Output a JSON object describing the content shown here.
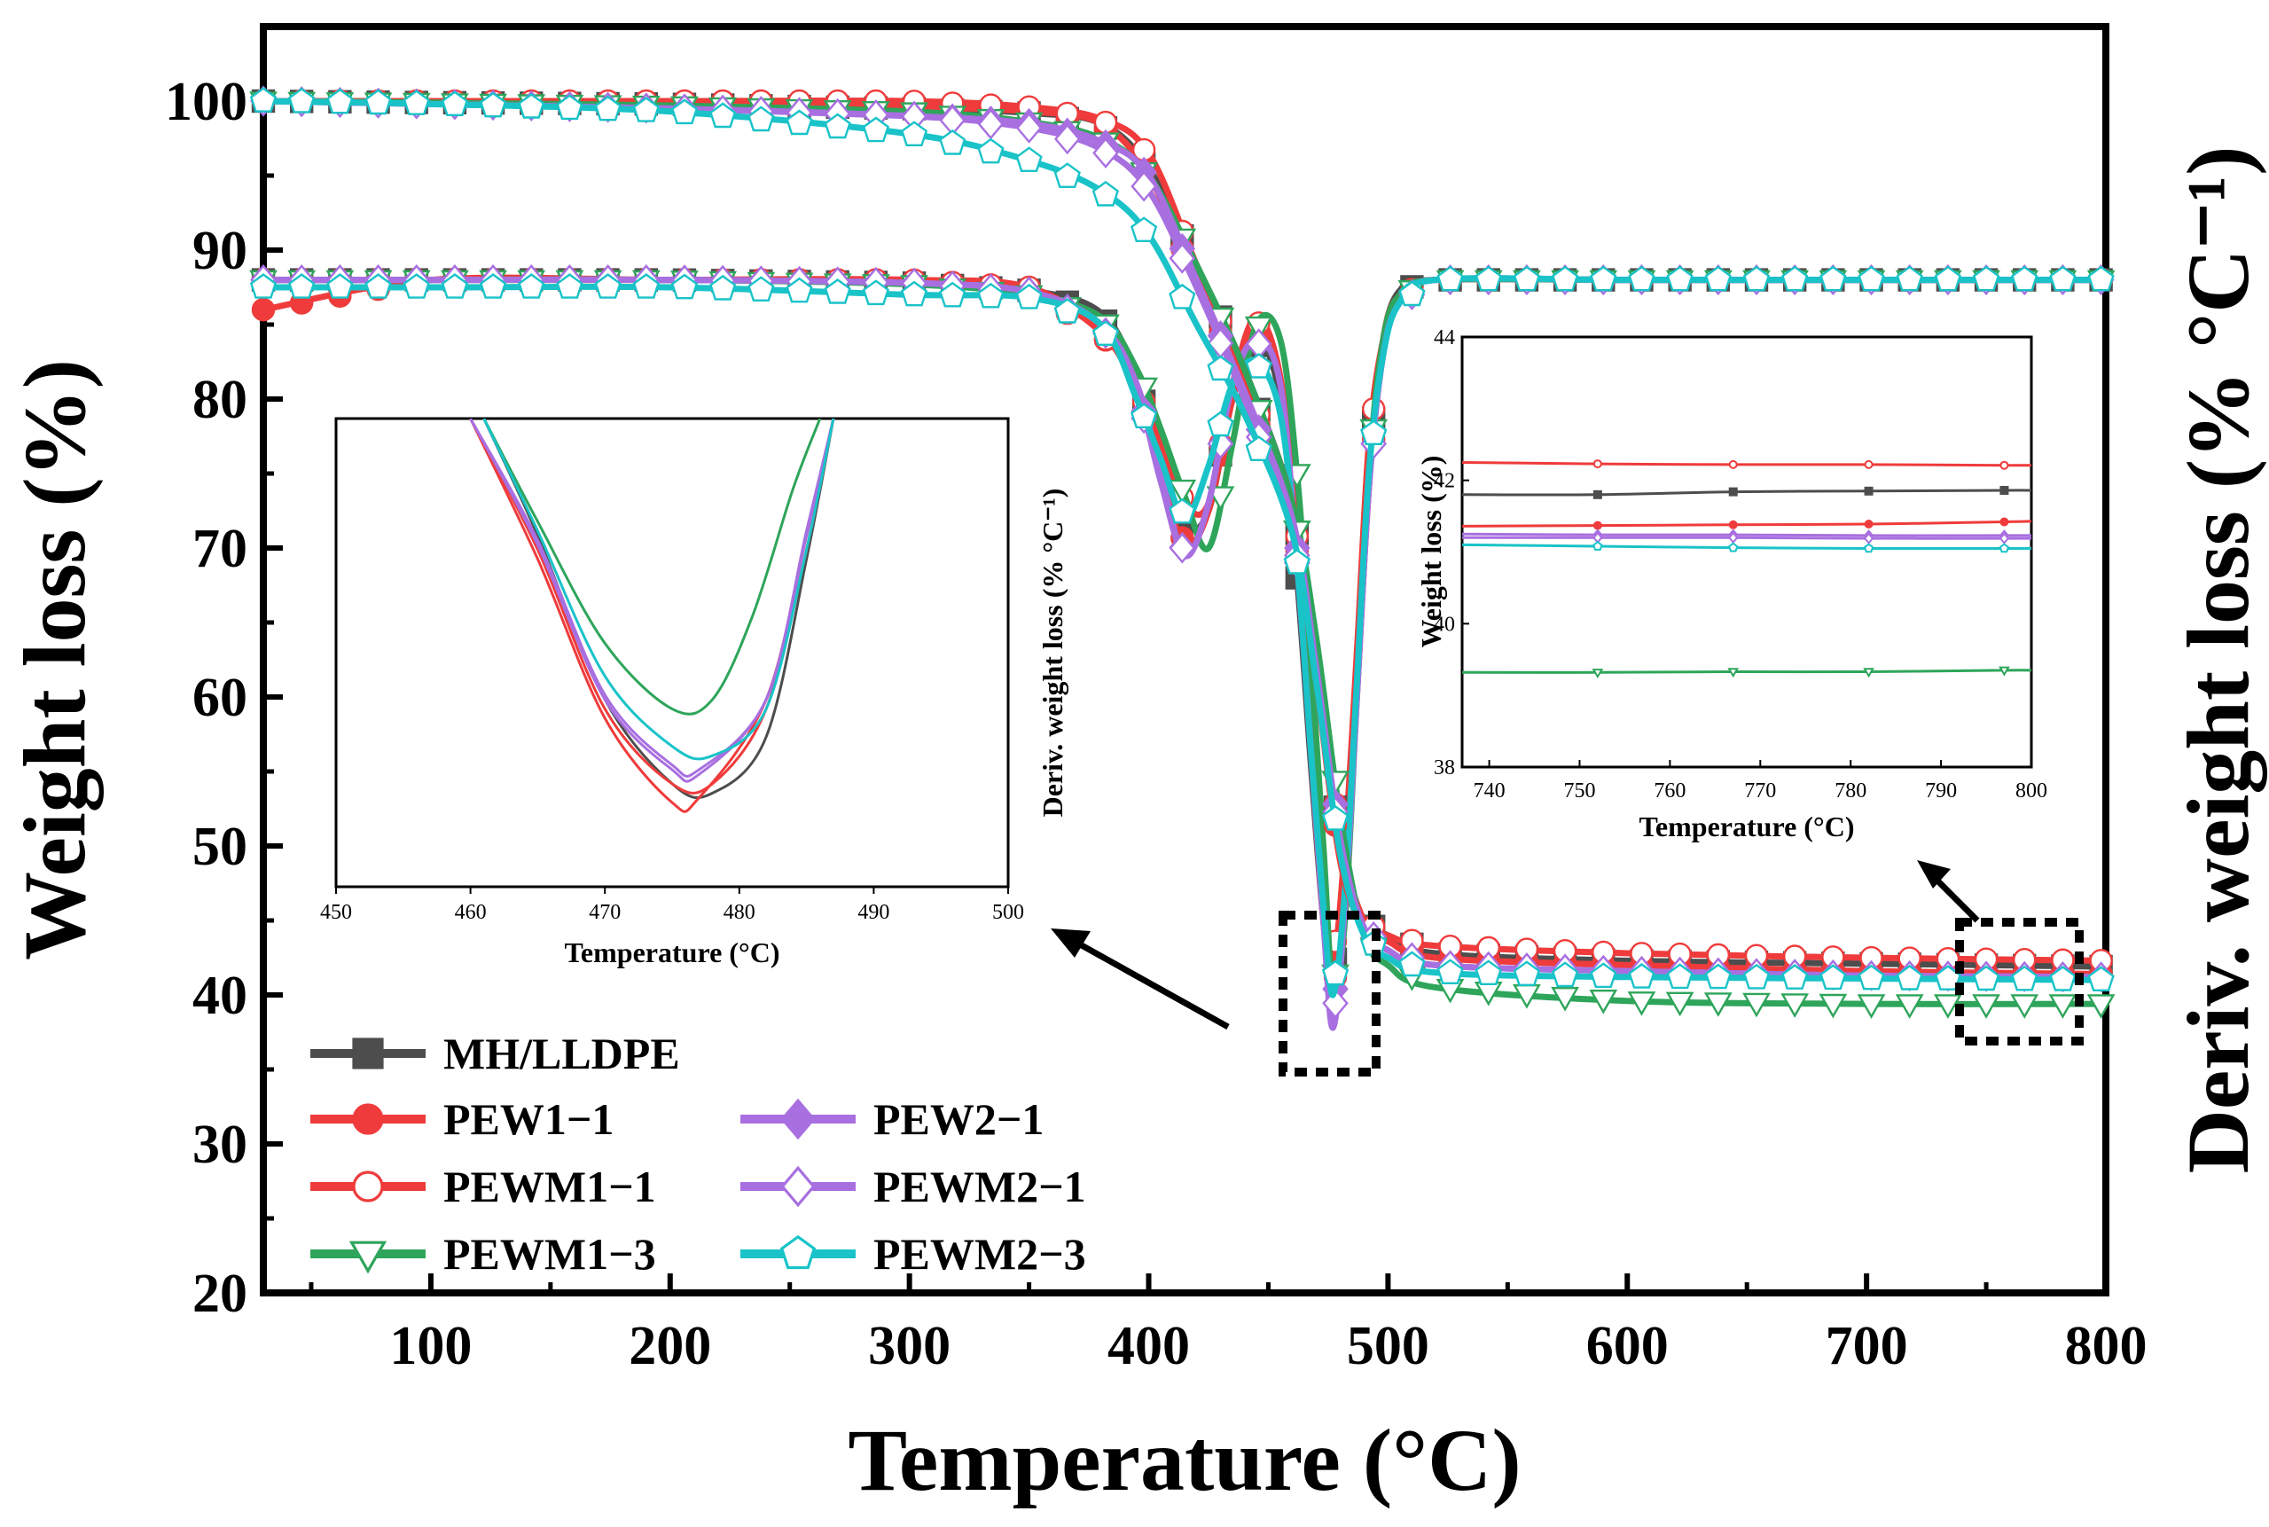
{
  "chart_data": [
    {
      "type": "line",
      "xlabel": "Temperature (°C)",
      "ylabel": "Weight loss (%)",
      "y2label": "Deriv. weight loss (% °C⁻¹)",
      "xlim": [
        30,
        800
      ],
      "ylim": [
        20,
        105
      ],
      "xticks": [
        "100",
        "200",
        "300",
        "400",
        "500",
        "600",
        "700",
        "800"
      ],
      "yticks": [
        "20",
        "30",
        "40",
        "50",
        "60",
        "70",
        "80",
        "90",
        "100"
      ],
      "grid": false,
      "legend_position": "bottom-left",
      "legend": [
        "MH/LLDPE",
        "PEW1−1",
        "PEWM1−1",
        "PEWM1−3",
        "PEW2−1",
        "PEWM2−1",
        "PEWM2−3"
      ],
      "x": [
        30,
        100,
        200,
        300,
        350,
        380,
        400,
        420,
        440,
        460,
        470,
        480,
        490,
        500,
        520,
        600,
        700,
        800
      ],
      "tga_series": [
        {
          "name": "MH/LLDPE",
          "color": "#4d4d4d",
          "marker": "square-filled",
          "values": [
            100,
            99.9,
            99.8,
            99.5,
            99.2,
            98.5,
            95.5,
            89,
            82,
            73,
            63,
            50,
            45,
            44,
            42.8,
            42.3,
            42.1,
            41.9
          ]
        },
        {
          "name": "PEW1−1",
          "color": "#ef3b3b",
          "marker": "circle-filled",
          "values": [
            100,
            100,
            99.9,
            99.6,
            99.3,
            98.5,
            95,
            88,
            81,
            72,
            61,
            49,
            44.5,
            43.6,
            42.5,
            42,
            41.6,
            41.4
          ]
        },
        {
          "name": "PEWM1−1",
          "color": "#ef3b3b",
          "marker": "circle-open",
          "values": [
            100,
            100,
            100,
            100,
            99.6,
            98.8,
            96.5,
            89,
            81.5,
            73,
            62,
            50.5,
            45,
            44,
            43.3,
            42.8,
            42.5,
            42.3
          ]
        },
        {
          "name": "PEWM1−3",
          "color": "#2ea55a",
          "marker": "triangle-down-open",
          "values": [
            100,
            99.9,
            99.7,
            99.3,
            98.6,
            97.5,
            95,
            89,
            82,
            73,
            64,
            52,
            44,
            42,
            40.5,
            39.6,
            39.4,
            39.4
          ]
        },
        {
          "name": "PEW2−1",
          "color": "#a86fe0",
          "marker": "diamond-filled",
          "values": [
            100,
            99.8,
            99.5,
            99,
            98.5,
            97.3,
            95,
            88,
            80.5,
            72,
            62,
            50.5,
            44.5,
            43,
            42,
            41.6,
            41.3,
            41.2
          ]
        },
        {
          "name": "PEWM2−1",
          "color": "#a86fe0",
          "marker": "diamond-open",
          "values": [
            100,
            99.8,
            99.5,
            99,
            98.2,
            96.8,
            94,
            87.5,
            80,
            71.5,
            61.5,
            50,
            44.5,
            43,
            42,
            41.6,
            41.3,
            41.2
          ]
        },
        {
          "name": "PEWM2−3",
          "color": "#19c3c8",
          "marker": "pentagon-open",
          "values": [
            100,
            99.8,
            99.3,
            97.8,
            96,
            94,
            91,
            85,
            79,
            71,
            61,
            49.5,
            44,
            42.5,
            41.5,
            41.2,
            41.1,
            41.0
          ]
        }
      ],
      "dtg_x": [
        30,
        100,
        200,
        300,
        350,
        380,
        395,
        405,
        415,
        425,
        435,
        445,
        455,
        462,
        468,
        473,
        477,
        482,
        487,
        492,
        498,
        505,
        520,
        600,
        700,
        800
      ],
      "dtg_series": [
        {
          "name": "MH/LLDPE",
          "values": [
            88,
            88,
            88,
            87.8,
            87.3,
            85.8,
            81.5,
            76,
            71.5,
            72.5,
            80,
            84,
            80,
            68,
            55,
            45,
            41,
            48,
            62,
            76,
            84,
            87.3,
            88,
            88,
            88,
            88
          ]
        },
        {
          "name": "PEW1−1",
          "values": [
            86,
            88,
            88,
            88,
            87.2,
            84.5,
            80.5,
            75,
            70.2,
            72.5,
            80,
            84.5,
            81,
            70,
            56,
            45,
            40,
            46,
            60,
            74,
            84,
            87,
            88,
            88,
            88,
            88
          ]
        },
        {
          "name": "PEWM1−1",
          "values": [
            88,
            88,
            88,
            88,
            87.5,
            84.5,
            81,
            77,
            73,
            73,
            81,
            85.5,
            81.5,
            71,
            57,
            46,
            42,
            50,
            63,
            77,
            84,
            87,
            88,
            88,
            88,
            88
          ]
        },
        {
          "name": "PEWM1−3",
          "values": [
            88,
            88,
            88,
            87.7,
            87,
            85.5,
            82,
            78,
            73.5,
            70,
            77,
            85,
            84,
            75,
            62,
            50,
            40.5,
            45,
            60,
            75,
            84,
            87,
            88,
            88,
            88,
            88
          ]
        },
        {
          "name": "PEW2−1",
          "values": [
            88,
            88,
            88,
            87.8,
            87.2,
            85,
            81,
            75,
            69.5,
            73,
            81,
            84,
            81,
            69,
            56,
            45,
            39,
            46,
            60,
            74,
            83,
            86.5,
            88,
            88,
            88,
            88
          ]
        },
        {
          "name": "PEWM2−1",
          "values": [
            88,
            88,
            88,
            87.8,
            87.2,
            85,
            80.5,
            74.5,
            69.5,
            73,
            81,
            84,
            81,
            69,
            56,
            45,
            37.8,
            46,
            60,
            74,
            83,
            86.5,
            88,
            88,
            88,
            88
          ]
        },
        {
          "name": "PEWM2−3",
          "values": [
            87.5,
            87.5,
            87.5,
            87,
            86.8,
            85,
            80,
            76,
            72,
            75.5,
            81,
            82.5,
            79,
            69,
            56,
            46,
            40,
            47,
            61,
            75,
            83,
            86.5,
            88,
            88,
            88,
            88
          ]
        }
      ]
    },
    {
      "type": "line",
      "xlabel": "Temperature (°C)",
      "ylabel": "Deriv. weight loss (% °C⁻¹)",
      "xlim": [
        450,
        500
      ],
      "xticks": [
        "450",
        "460",
        "470",
        "480",
        "490",
        "500"
      ],
      "yticks": [],
      "inset_of": "main",
      "ylim": [
        0,
        100
      ],
      "series": [
        {
          "name": "MH/LLDPE",
          "color": "#4d4d4d",
          "x": [
            461,
            465,
            470,
            475,
            478,
            482,
            485,
            487
          ],
          "values": [
            100,
            75,
            40,
            22,
            20,
            32,
            70,
            100
          ]
        },
        {
          "name": "PEW1−1",
          "color": "#ef3b3b",
          "x": [
            460,
            465,
            470,
            475,
            477,
            482,
            485,
            487
          ],
          "values": [
            100,
            70,
            36,
            18,
            19,
            40,
            75,
            100
          ]
        },
        {
          "name": "PEWM1−1",
          "color": "#ef3b3b",
          "x": [
            460,
            465,
            470,
            475,
            478,
            482,
            485,
            487
          ],
          "values": [
            100,
            72,
            38,
            22,
            22,
            38,
            72,
            100
          ]
        },
        {
          "name": "PEWM1−3",
          "color": "#2ea55a",
          "x": [
            461,
            465,
            470,
            475,
            478,
            481,
            484,
            486
          ],
          "values": [
            100,
            78,
            52,
            38,
            40,
            58,
            85,
            100
          ]
        },
        {
          "name": "PEW2−1",
          "color": "#a86fe0",
          "x": [
            460,
            465,
            470,
            475,
            477,
            482,
            485,
            487
          ],
          "values": [
            100,
            73,
            40,
            25,
            24,
            40,
            75,
            100
          ]
        },
        {
          "name": "PEWM2−1",
          "color": "#a86fe0",
          "x": [
            460,
            465,
            470,
            475,
            477,
            482,
            485,
            487
          ],
          "values": [
            100,
            74,
            41,
            26,
            25,
            40,
            76,
            100
          ]
        },
        {
          "name": "PEWM2−3",
          "color": "#19c3c8",
          "x": [
            461,
            465,
            470,
            475,
            478,
            482,
            485,
            487
          ],
          "values": [
            100,
            76,
            45,
            30,
            28,
            38,
            72,
            100
          ]
        }
      ]
    },
    {
      "type": "line",
      "xlabel": "Temperature (°C)",
      "ylabel": "Weight loss (%)",
      "xlim": [
        737,
        800
      ],
      "ylim": [
        38,
        44
      ],
      "xticks": [
        "740",
        "750",
        "760",
        "770",
        "780",
        "790",
        "800"
      ],
      "yticks": [
        "38",
        "40",
        "42",
        "44"
      ],
      "inset_of": "main",
      "x": [
        737,
        752,
        767,
        782,
        797,
        800
      ],
      "series": [
        {
          "name": "PEWM1−1",
          "color": "#ef3b3b",
          "values": [
            42.25,
            42.23,
            42.22,
            42.22,
            42.21,
            42.21
          ]
        },
        {
          "name": "MH/LLDPE",
          "color": "#4d4d4d",
          "values": [
            41.8,
            41.8,
            41.84,
            41.85,
            41.86,
            41.86
          ]
        },
        {
          "name": "PEW1−1",
          "color": "#ef3b3b",
          "values": [
            41.36,
            41.37,
            41.38,
            41.39,
            41.42,
            41.43
          ]
        },
        {
          "name": "PEW2−1",
          "color": "#a86fe0",
          "values": [
            41.25,
            41.24,
            41.24,
            41.23,
            41.23,
            41.23
          ]
        },
        {
          "name": "PEWM2−1",
          "color": "#a86fe0",
          "values": [
            41.2,
            41.2,
            41.2,
            41.19,
            41.19,
            41.19
          ]
        },
        {
          "name": "PEWM2−3",
          "color": "#19c3c8",
          "values": [
            41.1,
            41.08,
            41.06,
            41.05,
            41.05,
            41.05
          ]
        },
        {
          "name": "PEWM1−3",
          "color": "#2ea55a",
          "values": [
            39.32,
            39.32,
            39.33,
            39.33,
            39.35,
            39.35
          ]
        }
      ]
    }
  ]
}
